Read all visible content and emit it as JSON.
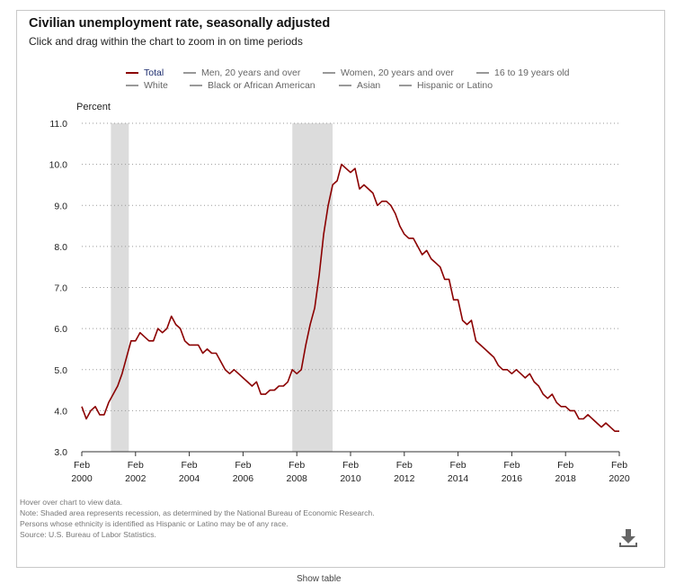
{
  "header": {
    "title": "Civilian unemployment rate, seasonally adjusted",
    "subtitle": "Click and drag within the chart to zoom in on time periods"
  },
  "legend": [
    {
      "label": "Total",
      "color": "#8b0000",
      "active": true
    },
    {
      "label": "Men, 20 years and over",
      "color": "#999999",
      "active": false
    },
    {
      "label": "Women, 20 years and over",
      "color": "#999999",
      "active": false
    },
    {
      "label": "16 to 19 years old",
      "color": "#999999",
      "active": false
    },
    {
      "label": "White",
      "color": "#999999",
      "active": false
    },
    {
      "label": "Black or African American",
      "color": "#999999",
      "active": false
    },
    {
      "label": "Asian",
      "color": "#999999",
      "active": false
    },
    {
      "label": "Hispanic or Latino",
      "color": "#999999",
      "active": false
    }
  ],
  "notes": {
    "hover": "Hover over chart to view data.",
    "shading": "Note: Shaded area represents recession, as determined by the National Bureau of Economic Research.",
    "ethnicity": "Persons whose ethnicity is identified as Hispanic or Latino may be of any race.",
    "source": "Source: U.S. Bureau of Labor Statistics."
  },
  "toolbar": {
    "download_icon": "download-icon"
  },
  "footer": {
    "cut_text": "Show table"
  },
  "chart_data": {
    "type": "line",
    "ylabel": "Percent",
    "ylim": [
      3.0,
      11.0
    ],
    "yticks": [
      "3.0",
      "4.0",
      "5.0",
      "6.0",
      "7.0",
      "8.0",
      "9.0",
      "10.0",
      "11.0"
    ],
    "xlim": [
      "2000-02",
      "2020-02"
    ],
    "xticks": [
      {
        "month": "Feb",
        "year": "2000",
        "date": "2000-02"
      },
      {
        "month": "Feb",
        "year": "2002",
        "date": "2002-02"
      },
      {
        "month": "Feb",
        "year": "2004",
        "date": "2004-02"
      },
      {
        "month": "Feb",
        "year": "2006",
        "date": "2006-02"
      },
      {
        "month": "Feb",
        "year": "2008",
        "date": "2008-02"
      },
      {
        "month": "Feb",
        "year": "2010",
        "date": "2010-02"
      },
      {
        "month": "Feb",
        "year": "2012",
        "date": "2012-02"
      },
      {
        "month": "Feb",
        "year": "2014",
        "date": "2014-02"
      },
      {
        "month": "Feb",
        "year": "2016",
        "date": "2016-02"
      },
      {
        "month": "Feb",
        "year": "2018",
        "date": "2018-02"
      },
      {
        "month": "Feb",
        "year": "2020",
        "date": "2020-02"
      }
    ],
    "grid": "horizontal dotted",
    "legend_position": "top",
    "recessions": [
      {
        "start": "2001-03",
        "end": "2001-11"
      },
      {
        "start": "2007-12",
        "end": "2009-06"
      }
    ],
    "series": [
      {
        "name": "Total",
        "color": "#8b0000",
        "x": [
          "2000-02",
          "2000-04",
          "2000-06",
          "2000-08",
          "2000-10",
          "2000-12",
          "2001-02",
          "2001-04",
          "2001-06",
          "2001-08",
          "2001-10",
          "2001-12",
          "2002-02",
          "2002-04",
          "2002-06",
          "2002-08",
          "2002-10",
          "2002-12",
          "2003-02",
          "2003-04",
          "2003-06",
          "2003-08",
          "2003-10",
          "2003-12",
          "2004-02",
          "2004-04",
          "2004-06",
          "2004-08",
          "2004-10",
          "2004-12",
          "2005-02",
          "2005-04",
          "2005-06",
          "2005-08",
          "2005-10",
          "2005-12",
          "2006-02",
          "2006-04",
          "2006-06",
          "2006-08",
          "2006-10",
          "2006-12",
          "2007-02",
          "2007-04",
          "2007-06",
          "2007-08",
          "2007-10",
          "2007-12",
          "2008-02",
          "2008-04",
          "2008-06",
          "2008-08",
          "2008-10",
          "2008-12",
          "2009-02",
          "2009-04",
          "2009-06",
          "2009-08",
          "2009-10",
          "2009-12",
          "2010-02",
          "2010-04",
          "2010-06",
          "2010-08",
          "2010-10",
          "2010-12",
          "2011-02",
          "2011-04",
          "2011-06",
          "2011-08",
          "2011-10",
          "2011-12",
          "2012-02",
          "2012-04",
          "2012-06",
          "2012-08",
          "2012-10",
          "2012-12",
          "2013-02",
          "2013-04",
          "2013-06",
          "2013-08",
          "2013-10",
          "2013-12",
          "2014-02",
          "2014-04",
          "2014-06",
          "2014-08",
          "2014-10",
          "2014-12",
          "2015-02",
          "2015-04",
          "2015-06",
          "2015-08",
          "2015-10",
          "2015-12",
          "2016-02",
          "2016-04",
          "2016-06",
          "2016-08",
          "2016-10",
          "2016-12",
          "2017-02",
          "2017-04",
          "2017-06",
          "2017-08",
          "2017-10",
          "2017-12",
          "2018-02",
          "2018-04",
          "2018-06",
          "2018-08",
          "2018-10",
          "2018-12",
          "2019-02",
          "2019-04",
          "2019-06",
          "2019-08",
          "2019-10",
          "2019-12",
          "2020-02"
        ],
        "values": [
          4.1,
          3.8,
          4.0,
          4.1,
          3.9,
          3.9,
          4.2,
          4.4,
          4.6,
          4.9,
          5.3,
          5.7,
          5.7,
          5.9,
          5.8,
          5.7,
          5.7,
          6.0,
          5.9,
          6.0,
          6.3,
          6.1,
          6.0,
          5.7,
          5.6,
          5.6,
          5.6,
          5.4,
          5.5,
          5.4,
          5.4,
          5.2,
          5.0,
          4.9,
          5.0,
          4.9,
          4.8,
          4.7,
          4.6,
          4.7,
          4.4,
          4.4,
          4.5,
          4.5,
          4.6,
          4.6,
          4.7,
          5.0,
          4.9,
          5.0,
          5.6,
          6.1,
          6.5,
          7.3,
          8.3,
          9.0,
          9.5,
          9.6,
          10.0,
          9.9,
          9.8,
          9.9,
          9.4,
          9.5,
          9.4,
          9.3,
          9.0,
          9.1,
          9.1,
          9.0,
          8.8,
          8.5,
          8.3,
          8.2,
          8.2,
          8.0,
          7.8,
          7.9,
          7.7,
          7.6,
          7.5,
          7.2,
          7.2,
          6.7,
          6.7,
          6.2,
          6.1,
          6.2,
          5.7,
          5.6,
          5.5,
          5.4,
          5.3,
          5.1,
          5.0,
          5.0,
          4.9,
          5.0,
          4.9,
          4.8,
          4.9,
          4.7,
          4.6,
          4.4,
          4.3,
          4.4,
          4.2,
          4.1,
          4.1,
          4.0,
          4.0,
          3.8,
          3.8,
          3.9,
          3.8,
          3.7,
          3.6,
          3.7,
          3.6,
          3.5,
          3.5
        ]
      }
    ]
  }
}
